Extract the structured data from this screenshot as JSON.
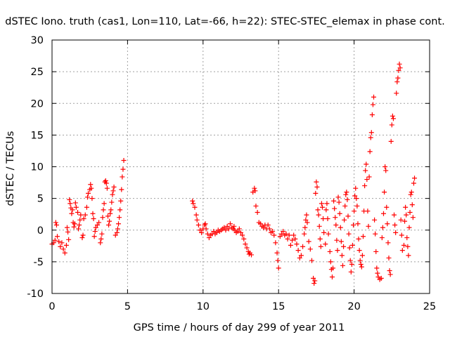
{
  "chart_data": {
    "type": "scatter",
    "title": "dSTEC Iono. truth (cas1, Lon=110, Lat=-66, h=22): STEC-STEC_elemax in phase cont.",
    "xlabel": "GPS time / hours of day 299 of year 2011",
    "ylabel": "dSTEC  / TECUs",
    "xlim": [
      0,
      25
    ],
    "ylim": [
      -10,
      30
    ],
    "x_ticks": [
      "0",
      "5",
      "10",
      "15",
      "20",
      "25"
    ],
    "y_ticks": [
      "-10",
      "-5",
      "0",
      "5",
      "10",
      "15",
      "20",
      "25",
      "30"
    ],
    "grid": true,
    "marker": "+",
    "color": "#ff0000",
    "series": [
      {
        "points": [
          [
            0.0,
            -2.2
          ],
          [
            0.1,
            -2.0
          ],
          [
            0.2,
            -1.6
          ],
          [
            0.25,
            1.2
          ],
          [
            0.3,
            0.8
          ],
          [
            0.35,
            -1.0
          ],
          [
            0.45,
            -1.8
          ],
          [
            0.55,
            -2.6
          ],
          [
            0.65,
            -2.0
          ],
          [
            0.75,
            -3.0
          ],
          [
            0.85,
            -3.6
          ],
          [
            0.95,
            -2.4
          ],
          [
            1.0,
            0.4
          ],
          [
            1.05,
            -0.3
          ],
          [
            1.1,
            -1.5
          ],
          [
            1.15,
            4.8
          ],
          [
            1.2,
            4.2
          ],
          [
            1.25,
            3.5
          ],
          [
            1.3,
            2.6
          ],
          [
            1.35,
            3.2
          ],
          [
            1.4,
            1.2
          ],
          [
            1.45,
            0.5
          ],
          [
            1.5,
            1.0
          ],
          [
            1.55,
            4.3
          ],
          [
            1.6,
            3.6
          ],
          [
            1.7,
            2.8
          ],
          [
            1.75,
            0.2
          ],
          [
            1.8,
            0.8
          ],
          [
            1.85,
            1.6
          ],
          [
            1.9,
            2.4
          ],
          [
            2.0,
            -1.2
          ],
          [
            2.05,
            -0.8
          ],
          [
            2.1,
            1.8
          ],
          [
            2.2,
            2.4
          ],
          [
            2.3,
            3.6
          ],
          [
            2.35,
            5.2
          ],
          [
            2.4,
            5.8
          ],
          [
            2.5,
            6.4
          ],
          [
            2.55,
            7.2
          ],
          [
            2.6,
            6.6
          ],
          [
            2.65,
            5.0
          ],
          [
            2.7,
            2.6
          ],
          [
            2.75,
            1.8
          ],
          [
            2.8,
            -1.0
          ],
          [
            2.85,
            -0.2
          ],
          [
            2.9,
            0.4
          ],
          [
            3.0,
            0.8
          ],
          [
            3.1,
            1.2
          ],
          [
            3.2,
            -2.0
          ],
          [
            3.25,
            -1.4
          ],
          [
            3.3,
            -0.6
          ],
          [
            3.35,
            2.0
          ],
          [
            3.4,
            3.2
          ],
          [
            3.45,
            4.2
          ],
          [
            3.5,
            7.6
          ],
          [
            3.55,
            7.8
          ],
          [
            3.6,
            7.4
          ],
          [
            3.65,
            6.6
          ],
          [
            3.7,
            2.2
          ],
          [
            3.75,
            0.8
          ],
          [
            3.8,
            1.4
          ],
          [
            3.85,
            2.6
          ],
          [
            3.9,
            3.2
          ],
          [
            3.95,
            4.4
          ],
          [
            4.0,
            5.6
          ],
          [
            4.05,
            6.2
          ],
          [
            4.1,
            6.8
          ],
          [
            4.2,
            -0.8
          ],
          [
            4.3,
            -0.4
          ],
          [
            4.35,
            0.2
          ],
          [
            4.4,
            1.0
          ],
          [
            4.45,
            2.0
          ],
          [
            4.5,
            3.2
          ],
          [
            4.55,
            4.6
          ],
          [
            4.6,
            6.4
          ],
          [
            4.65,
            8.4
          ],
          [
            4.7,
            9.6
          ],
          [
            4.75,
            11.0
          ],
          [
            9.3,
            4.6
          ],
          [
            9.35,
            4.2
          ],
          [
            9.45,
            3.6
          ],
          [
            9.55,
            2.4
          ],
          [
            9.6,
            1.6
          ],
          [
            9.7,
            0.8
          ],
          [
            9.8,
            0.0
          ],
          [
            9.9,
            -0.4
          ],
          [
            10.0,
            0.2
          ],
          [
            10.1,
            0.8
          ],
          [
            10.15,
            1.0
          ],
          [
            10.2,
            0.2
          ],
          [
            10.3,
            -0.6
          ],
          [
            10.4,
            -1.2
          ],
          [
            10.5,
            -0.8
          ],
          [
            10.6,
            -0.6
          ],
          [
            10.7,
            -0.2
          ],
          [
            10.8,
            -0.6
          ],
          [
            10.9,
            -0.4
          ],
          [
            11.0,
            0.0
          ],
          [
            11.1,
            -0.2
          ],
          [
            11.2,
            0.0
          ],
          [
            11.3,
            0.2
          ],
          [
            11.4,
            0.4
          ],
          [
            11.5,
            0.0
          ],
          [
            11.6,
            0.6
          ],
          [
            11.7,
            0.2
          ],
          [
            11.8,
            1.0
          ],
          [
            11.9,
            0.4
          ],
          [
            12.0,
            0.2
          ],
          [
            12.05,
            0.6
          ],
          [
            12.1,
            0.0
          ],
          [
            12.2,
            -0.4
          ],
          [
            12.3,
            -0.2
          ],
          [
            12.4,
            0.2
          ],
          [
            12.5,
            -0.4
          ],
          [
            12.6,
            -0.8
          ],
          [
            12.7,
            -1.4
          ],
          [
            12.8,
            -2.2
          ],
          [
            12.9,
            -2.8
          ],
          [
            13.0,
            -3.4
          ],
          [
            13.05,
            -3.8
          ],
          [
            13.1,
            -3.6
          ],
          [
            13.2,
            -3.9
          ],
          [
            13.3,
            6.0
          ],
          [
            13.4,
            6.6
          ],
          [
            13.45,
            6.2
          ],
          [
            13.5,
            3.8
          ],
          [
            13.6,
            2.8
          ],
          [
            13.7,
            1.2
          ],
          [
            13.8,
            1.0
          ],
          [
            13.9,
            0.6
          ],
          [
            14.0,
            0.4
          ],
          [
            14.1,
            0.8
          ],
          [
            14.2,
            0.2
          ],
          [
            14.3,
            0.8
          ],
          [
            14.4,
            0.2
          ],
          [
            14.5,
            -0.4
          ],
          [
            14.6,
            -0.2
          ],
          [
            14.7,
            -0.8
          ],
          [
            14.8,
            -2.0
          ],
          [
            14.9,
            -3.6
          ],
          [
            14.95,
            -4.8
          ],
          [
            15.0,
            -6.0
          ],
          [
            15.1,
            -1.0
          ],
          [
            15.2,
            -0.6
          ],
          [
            15.3,
            -0.2
          ],
          [
            15.4,
            -0.8
          ],
          [
            15.5,
            -0.6
          ],
          [
            15.6,
            -1.4
          ],
          [
            15.7,
            -0.8
          ],
          [
            15.8,
            -2.4
          ],
          [
            15.9,
            -1.6
          ],
          [
            16.0,
            -0.8
          ],
          [
            16.1,
            -1.4
          ],
          [
            16.2,
            -2.2
          ],
          [
            16.3,
            -3.2
          ],
          [
            16.4,
            -4.4
          ],
          [
            16.5,
            -4.0
          ],
          [
            16.6,
            -2.6
          ],
          [
            16.7,
            -0.6
          ],
          [
            16.75,
            0.4
          ],
          [
            16.8,
            1.6
          ],
          [
            16.85,
            2.4
          ],
          [
            16.9,
            1.2
          ],
          [
            17.0,
            -1.8
          ],
          [
            17.1,
            -3.0
          ],
          [
            17.2,
            -4.8
          ],
          [
            17.3,
            -7.6
          ],
          [
            17.35,
            -8.4
          ],
          [
            17.4,
            -8.0
          ],
          [
            17.45,
            5.8
          ],
          [
            17.5,
            7.6
          ],
          [
            17.55,
            6.8
          ],
          [
            17.6,
            3.2
          ],
          [
            17.65,
            2.4
          ],
          [
            17.7,
            0.6
          ],
          [
            17.75,
            -1.4
          ],
          [
            17.8,
            -2.6
          ],
          [
            17.85,
            4.2
          ],
          [
            17.9,
            3.6
          ],
          [
            17.95,
            1.8
          ],
          [
            18.0,
            -0.4
          ],
          [
            18.1,
            -2.2
          ],
          [
            18.15,
            3.2
          ],
          [
            18.2,
            4.2
          ],
          [
            18.25,
            1.8
          ],
          [
            18.3,
            -0.6
          ],
          [
            18.4,
            -3.4
          ],
          [
            18.45,
            -5.0
          ],
          [
            18.5,
            -6.2
          ],
          [
            18.55,
            -7.4
          ],
          [
            18.6,
            -6.0
          ],
          [
            18.65,
            4.6
          ],
          [
            18.7,
            3.4
          ],
          [
            18.75,
            2.0
          ],
          [
            18.8,
            0.8
          ],
          [
            18.85,
            -1.6
          ],
          [
            18.9,
            -3.2
          ],
          [
            18.95,
            5.2
          ],
          [
            19.0,
            4.4
          ],
          [
            19.05,
            2.6
          ],
          [
            19.1,
            0.4
          ],
          [
            19.15,
            -1.8
          ],
          [
            19.2,
            -4.0
          ],
          [
            19.25,
            -5.6
          ],
          [
            19.3,
            -2.6
          ],
          [
            19.35,
            1.6
          ],
          [
            19.4,
            3.8
          ],
          [
            19.45,
            5.6
          ],
          [
            19.5,
            6.0
          ],
          [
            19.55,
            4.8
          ],
          [
            19.6,
            2.2
          ],
          [
            19.65,
            -0.6
          ],
          [
            19.7,
            -2.8
          ],
          [
            19.75,
            -4.8
          ],
          [
            19.8,
            -6.6
          ],
          [
            19.85,
            -5.4
          ],
          [
            19.9,
            -2.4
          ],
          [
            19.95,
            0.8
          ],
          [
            20.0,
            3.0
          ],
          [
            20.05,
            5.4
          ],
          [
            20.1,
            6.6
          ],
          [
            20.15,
            5.0
          ],
          [
            20.2,
            3.8
          ],
          [
            20.25,
            1.0
          ],
          [
            20.3,
            -1.4
          ],
          [
            20.35,
            -3.2
          ],
          [
            20.4,
            -4.8
          ],
          [
            20.45,
            -5.4
          ],
          [
            20.5,
            -5.8
          ],
          [
            20.55,
            -4.0
          ],
          [
            20.6,
            -1.0
          ],
          [
            20.65,
            3.0
          ],
          [
            20.7,
            7.0
          ],
          [
            20.75,
            9.4
          ],
          [
            20.8,
            10.4
          ],
          [
            20.85,
            8.0
          ],
          [
            20.9,
            3.0
          ],
          [
            20.95,
            0.6
          ],
          [
            21.0,
            8.4
          ],
          [
            21.05,
            12.4
          ],
          [
            21.1,
            14.6
          ],
          [
            21.15,
            15.4
          ],
          [
            21.2,
            18.2
          ],
          [
            21.25,
            19.8
          ],
          [
            21.3,
            21.0
          ],
          [
            21.35,
            1.6
          ],
          [
            21.4,
            -0.6
          ],
          [
            21.45,
            -3.4
          ],
          [
            21.5,
            -6.0
          ],
          [
            21.55,
            -6.8
          ],
          [
            21.6,
            -7.4
          ],
          [
            21.7,
            -7.8
          ],
          [
            21.8,
            -7.6
          ],
          [
            21.85,
            -1.2
          ],
          [
            21.9,
            0.4
          ],
          [
            21.95,
            2.6
          ],
          [
            22.0,
            6.0
          ],
          [
            22.05,
            10.0
          ],
          [
            22.1,
            9.4
          ],
          [
            22.15,
            3.6
          ],
          [
            22.2,
            1.0
          ],
          [
            22.25,
            -2.0
          ],
          [
            22.3,
            -4.4
          ],
          [
            22.35,
            -6.4
          ],
          [
            22.4,
            -7.0
          ],
          [
            22.45,
            14.0
          ],
          [
            22.5,
            16.6
          ],
          [
            22.55,
            18.0
          ],
          [
            22.6,
            17.6
          ],
          [
            22.65,
            2.4
          ],
          [
            22.7,
            0.8
          ],
          [
            22.75,
            -0.4
          ],
          [
            22.8,
            21.6
          ],
          [
            22.85,
            23.4
          ],
          [
            22.9,
            24.0
          ],
          [
            22.95,
            25.2
          ],
          [
            23.0,
            26.2
          ],
          [
            23.05,
            25.6
          ],
          [
            23.1,
            1.6
          ],
          [
            23.15,
            -0.8
          ],
          [
            23.2,
            -3.2
          ],
          [
            23.3,
            -2.4
          ],
          [
            23.35,
            1.4
          ],
          [
            23.4,
            3.6
          ],
          [
            23.45,
            2.4
          ],
          [
            23.5,
            -1.2
          ],
          [
            23.55,
            -2.6
          ],
          [
            23.6,
            -4.0
          ],
          [
            23.65,
            0.4
          ],
          [
            23.7,
            2.8
          ],
          [
            23.75,
            5.6
          ],
          [
            23.8,
            6.0
          ],
          [
            23.85,
            4.0
          ],
          [
            23.9,
            2.0
          ],
          [
            23.95,
            7.4
          ],
          [
            24.0,
            8.2
          ]
        ]
      }
    ]
  }
}
